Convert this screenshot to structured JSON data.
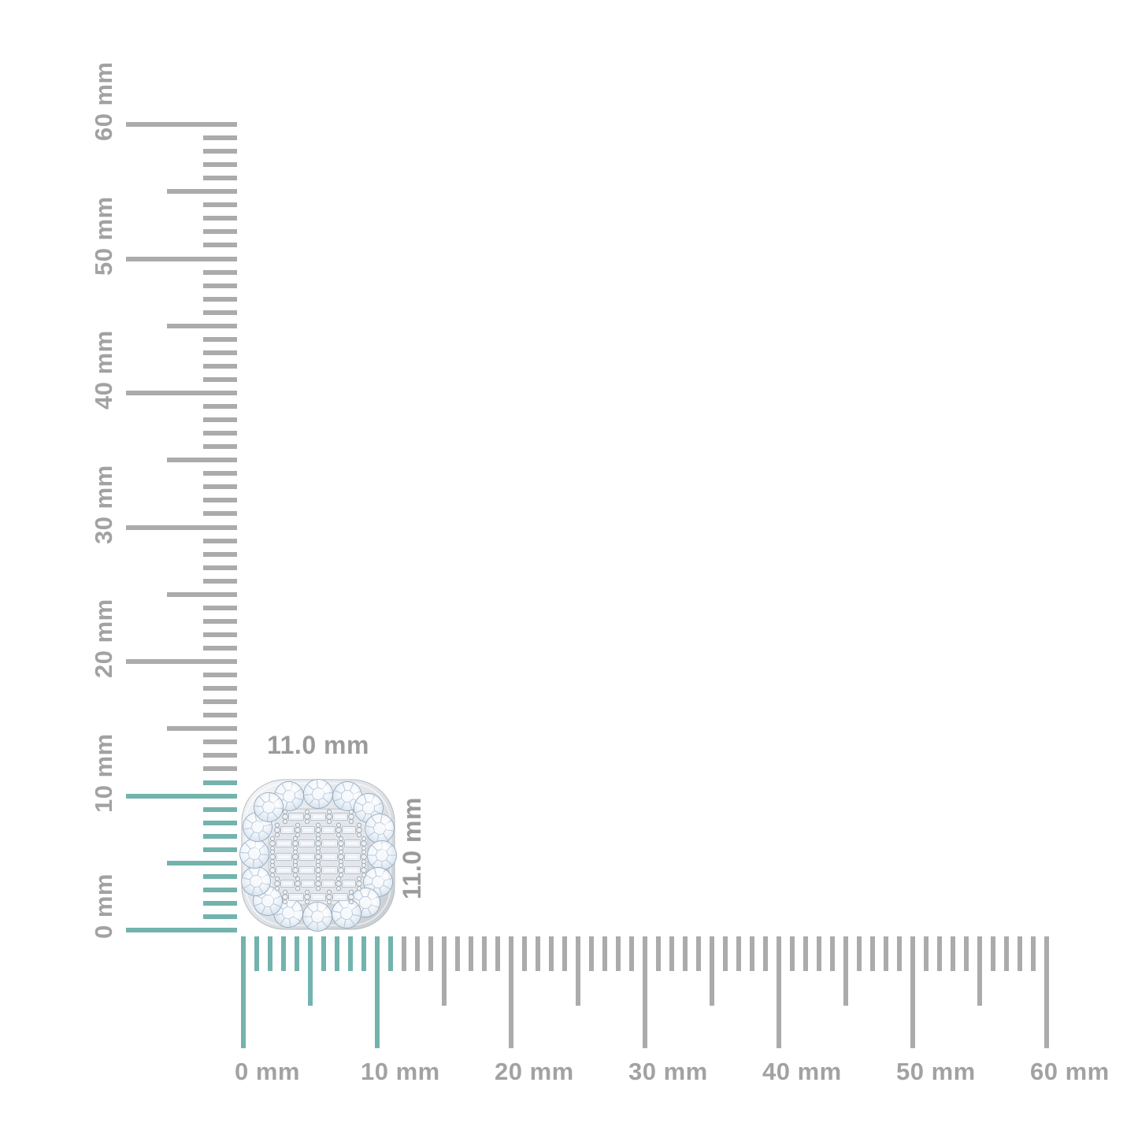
{
  "page": {
    "background": "#ffffff"
  },
  "rulers": {
    "unit": "mm",
    "range_mm": 60,
    "label_step_mm": 10,
    "highlight_mm": 11,
    "colors": {
      "tick_gray": "#ababab",
      "tick_highlight": "#73b3ad",
      "label_text": "#a2a2a2"
    },
    "vertical_labels": [
      "0 mm",
      "10 mm",
      "20 mm",
      "30 mm",
      "40 mm",
      "50 mm",
      "60 mm"
    ],
    "horizontal_labels": [
      "0 mm",
      "10 mm",
      "20 mm",
      "30 mm",
      "40 mm",
      "50 mm",
      "60 mm"
    ]
  },
  "item": {
    "name": "cushion-halo-diamond-stud-earring",
    "width_label": "11.0 mm",
    "height_label": "11.0 mm",
    "dimension_label_color": "#9b9b9b",
    "palette": {
      "metal_light": "#f4f6f8",
      "metal_dark": "#c6cbd1",
      "stone_light": "#ffffff",
      "stone_shade": "#adbfd2"
    }
  }
}
